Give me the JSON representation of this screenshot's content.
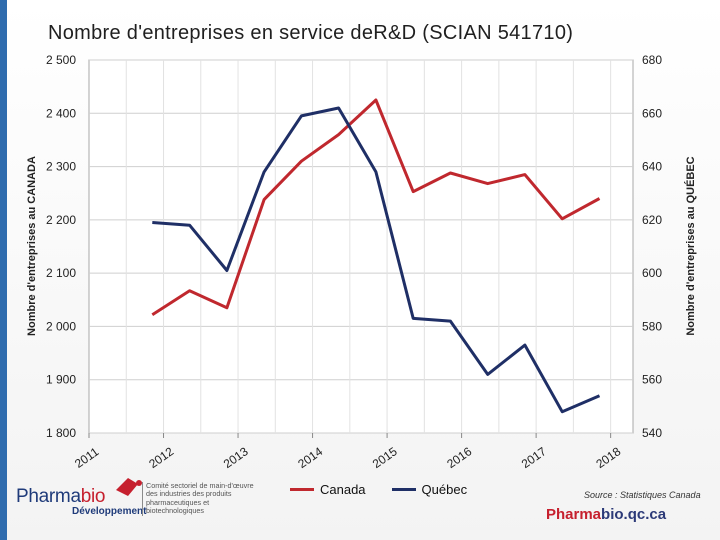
{
  "title": "Nombre d'entreprises en service deR&D (SCIAN 541710)",
  "chart_data": {
    "type": "line",
    "x": [
      2011.85,
      2012.35,
      2012.85,
      2013.35,
      2013.85,
      2014.35,
      2014.85,
      2015.35,
      2015.85,
      2016.35,
      2016.85,
      2017.35,
      2017.85
    ],
    "x_tick_labels": [
      "2011",
      "2012",
      "2013",
      "2014",
      "2015",
      "2016",
      "2017",
      "2018"
    ],
    "series": [
      {
        "name": "Canada",
        "axis": "left",
        "color": "#c0282e",
        "values": [
          2022,
          2067,
          2035,
          2238,
          2310,
          2360,
          2425,
          2253,
          2288,
          2268,
          2285,
          2202,
          2240
        ]
      },
      {
        "name": "Québec",
        "axis": "right",
        "color": "#1f2f66",
        "values": [
          619,
          618,
          601,
          638,
          659,
          662,
          638,
          583,
          582,
          562,
          573,
          548,
          554
        ]
      }
    ],
    "y_left": {
      "label": "Nombre d'entreprises au CANADA",
      "min": 1800,
      "max": 2500,
      "ticks": [
        "1 800",
        "1 900",
        "2 000",
        "2 100",
        "2 200",
        "2 300",
        "2 400",
        "2 500"
      ]
    },
    "y_right": {
      "label": "Nombre d'entreprises au QUÉBEC",
      "min": 540,
      "max": 680,
      "ticks": [
        "540",
        "560",
        "580",
        "600",
        "620",
        "640",
        "660",
        "680"
      ]
    },
    "grid": true
  },
  "legend": {
    "canada": "Canada",
    "quebec": "Québec"
  },
  "source": "Source : Statistiques Canada",
  "site": {
    "part1": "Pharma",
    "part2": "bio.qc.ca"
  },
  "logo": {
    "word1": "Pharma",
    "word2": "bio",
    "subtitle": "Développement",
    "description": "Comité sectoriel de main-d'œuvre des industries des produits pharmaceutiques et biotechnologiques"
  },
  "colors": {
    "canada": "#c0282e",
    "quebec": "#1f2f66",
    "accent": "#2f6cae"
  }
}
